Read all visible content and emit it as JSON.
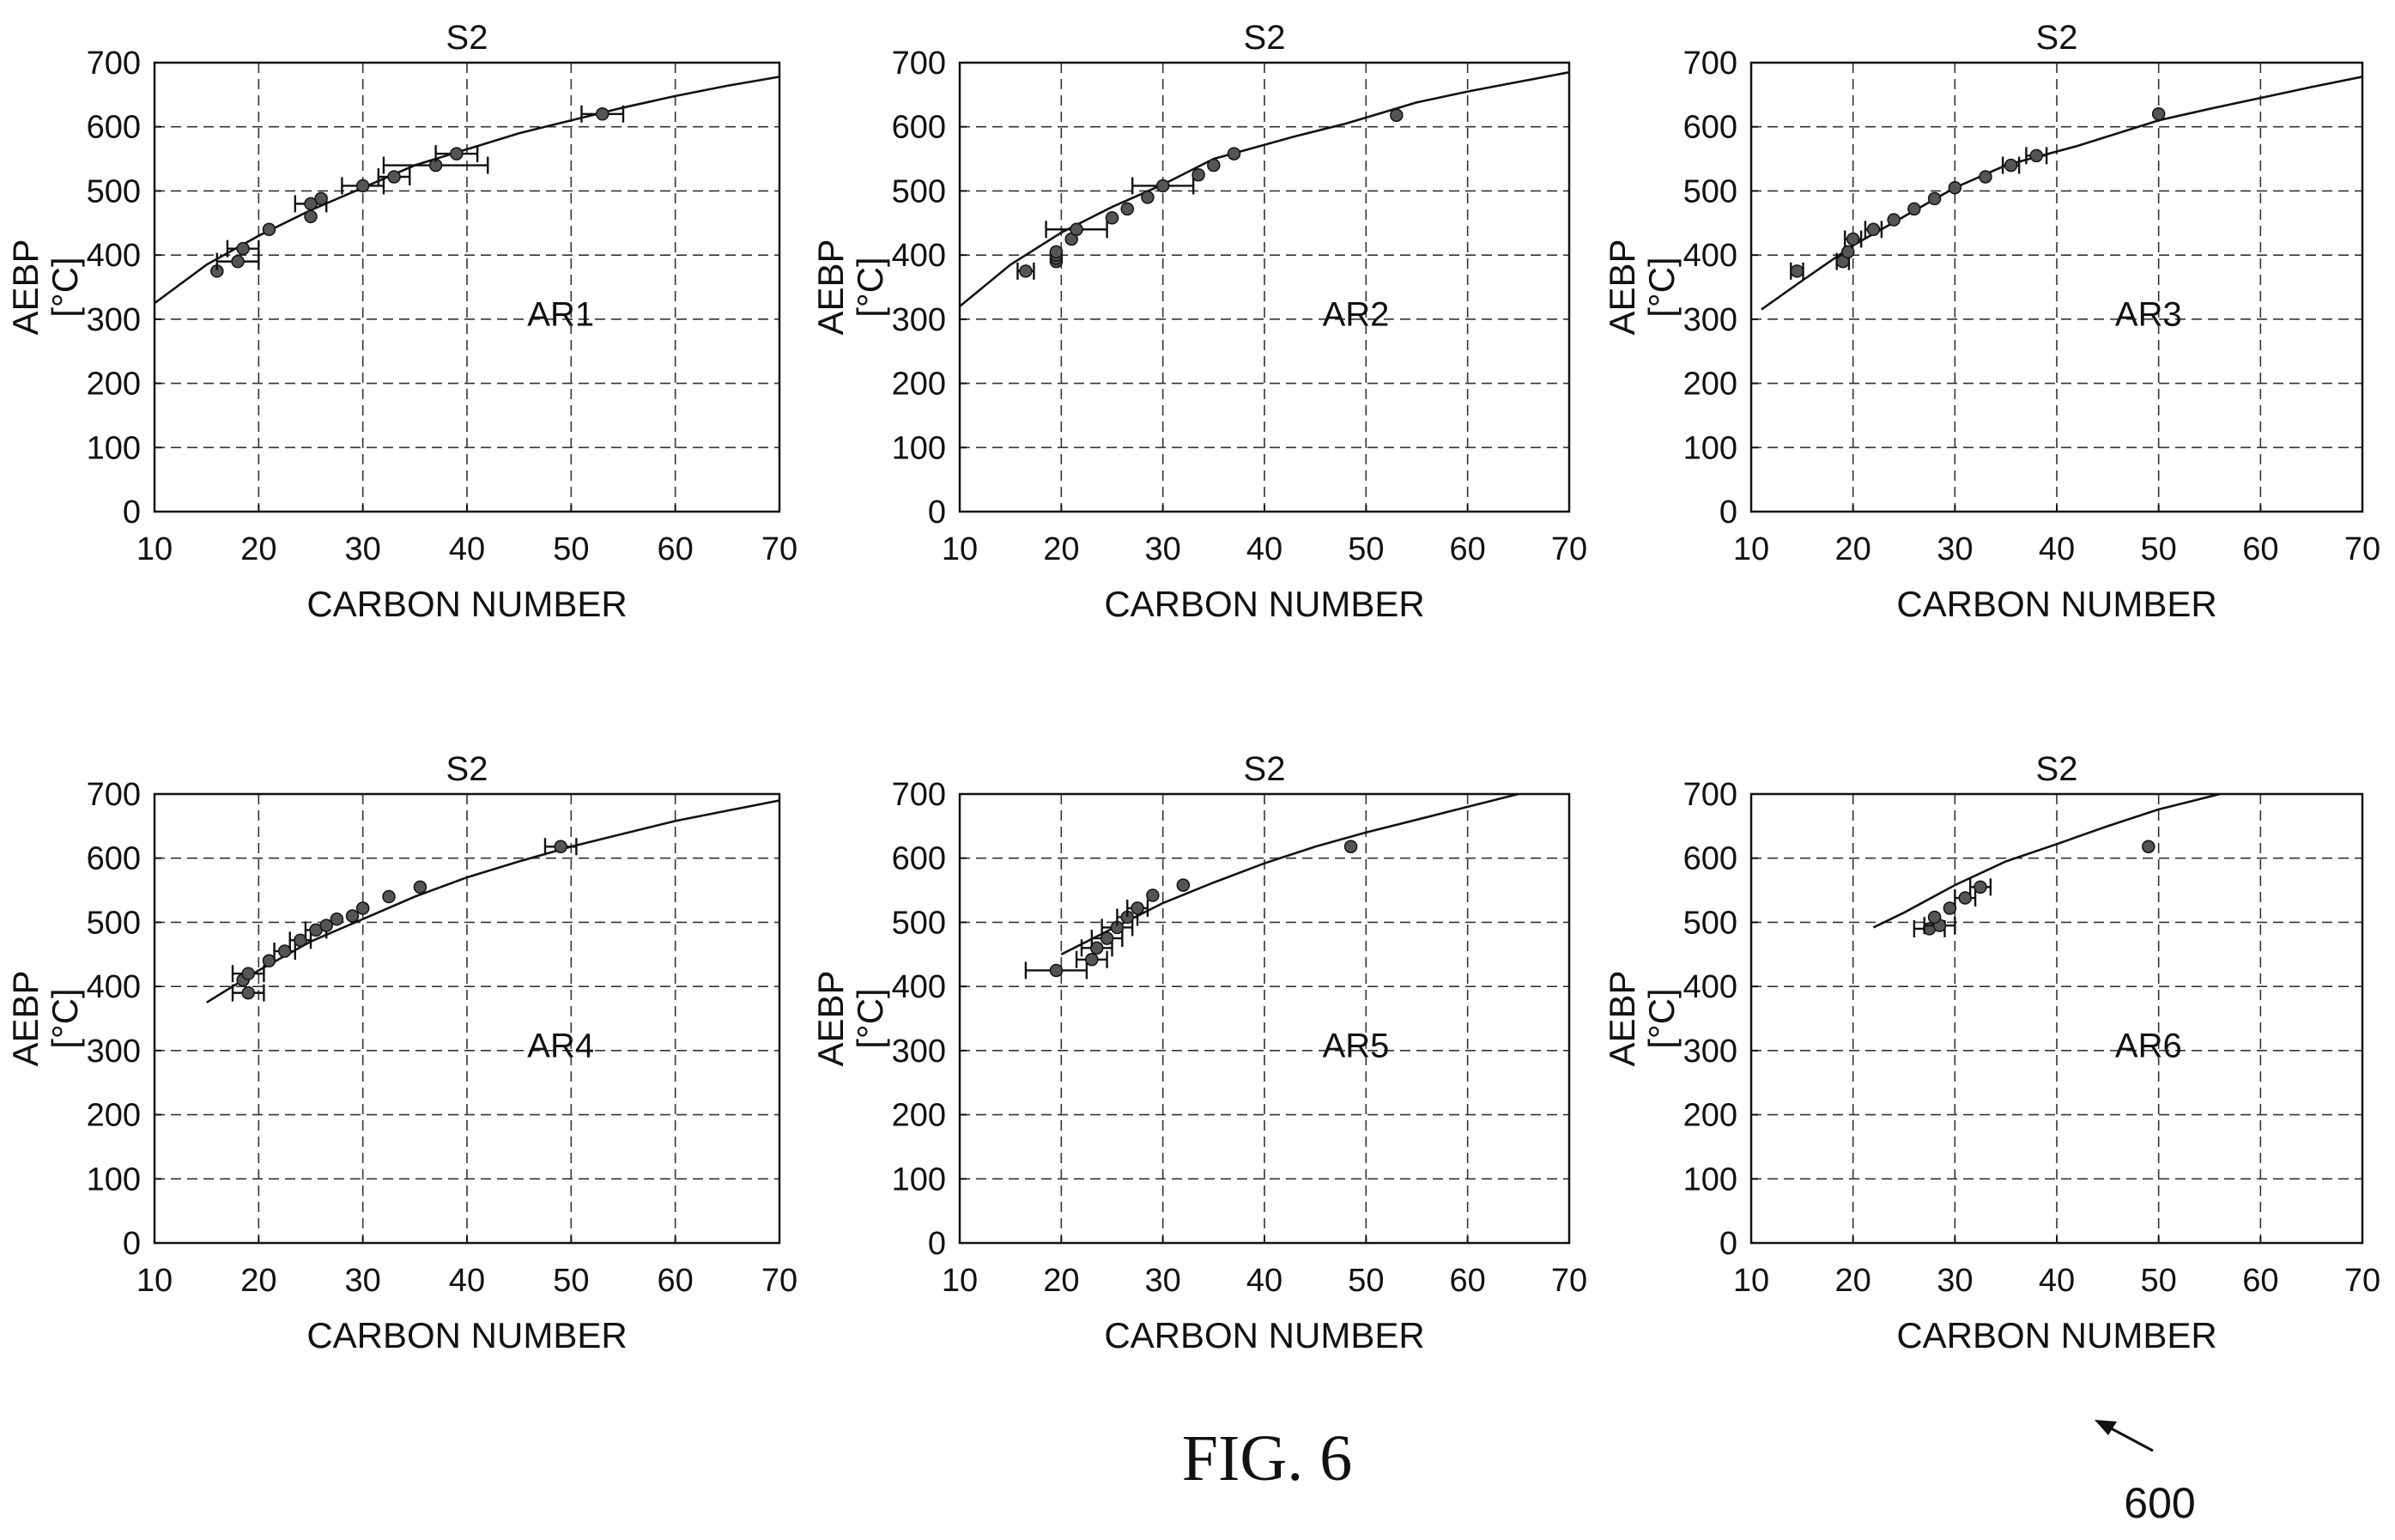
{
  "figure": {
    "caption": "FIG. 6",
    "reference_numeral": "600"
  },
  "chart_data": [
    {
      "type": "scatter",
      "title": "S2",
      "annotation": "AR1",
      "xlabel": "CARBON NUMBER",
      "ylabel": "AEBP [°C]",
      "xlim": [
        10,
        70
      ],
      "ylim": [
        0,
        700
      ],
      "xticks": [
        10,
        20,
        30,
        40,
        50,
        60,
        70
      ],
      "yticks": [
        0,
        100,
        200,
        300,
        400,
        500,
        600,
        700
      ],
      "grid": true,
      "curve": [
        [
          10,
          325
        ],
        [
          15,
          385
        ],
        [
          20,
          430
        ],
        [
          25,
          470
        ],
        [
          30,
          505
        ],
        [
          35,
          540
        ],
        [
          40,
          565
        ],
        [
          45,
          590
        ],
        [
          50,
          610
        ],
        [
          55,
          630
        ],
        [
          60,
          648
        ],
        [
          65,
          664
        ],
        [
          70,
          678
        ]
      ],
      "points": [
        {
          "x": 16,
          "y": 375
        },
        {
          "x": 18,
          "y": 390,
          "xerr": 2
        },
        {
          "x": 18.5,
          "y": 410,
          "xerr": 1.5
        },
        {
          "x": 21,
          "y": 440
        },
        {
          "x": 25,
          "y": 460
        },
        {
          "x": 25,
          "y": 480,
          "xerr": 1.5
        },
        {
          "x": 26,
          "y": 488
        },
        {
          "x": 30,
          "y": 508,
          "xerr": 2
        },
        {
          "x": 33,
          "y": 522,
          "xerr": 1.5
        },
        {
          "x": 37,
          "y": 540,
          "xerr": 5
        },
        {
          "x": 39,
          "y": 558,
          "xerr": 2
        },
        {
          "x": 53,
          "y": 620,
          "xerr": 2
        }
      ]
    },
    {
      "type": "scatter",
      "title": "S2",
      "annotation": "AR2",
      "xlabel": "CARBON NUMBER",
      "ylabel": "AEBP [°C]",
      "xlim": [
        10,
        70
      ],
      "ylim": [
        0,
        700
      ],
      "xticks": [
        10,
        20,
        30,
        40,
        50,
        60,
        70
      ],
      "yticks": [
        0,
        100,
        200,
        300,
        400,
        500,
        600,
        700
      ],
      "grid": true,
      "curve": [
        [
          10,
          320
        ],
        [
          15,
          385
        ],
        [
          20,
          435
        ],
        [
          25,
          475
        ],
        [
          30,
          510
        ],
        [
          35,
          550
        ],
        [
          43,
          585
        ],
        [
          48,
          605
        ],
        [
          55,
          638
        ],
        [
          60,
          655
        ],
        [
          65,
          670
        ],
        [
          70,
          685
        ]
      ],
      "points": [
        {
          "x": 16.5,
          "y": 375,
          "xerr": 0.8
        },
        {
          "x": 19.5,
          "y": 390
        },
        {
          "x": 19.5,
          "y": 395
        },
        {
          "x": 19.5,
          "y": 400
        },
        {
          "x": 19.5,
          "y": 405
        },
        {
          "x": 21,
          "y": 425
        },
        {
          "x": 21.5,
          "y": 440,
          "xerr": 3
        },
        {
          "x": 25,
          "y": 458
        },
        {
          "x": 26.5,
          "y": 472
        },
        {
          "x": 28.5,
          "y": 490
        },
        {
          "x": 30,
          "y": 508,
          "xerr": 3
        },
        {
          "x": 33.5,
          "y": 525
        },
        {
          "x": 35,
          "y": 540
        },
        {
          "x": 37,
          "y": 558
        },
        {
          "x": 53,
          "y": 618
        }
      ]
    },
    {
      "type": "scatter",
      "title": "S2",
      "annotation": "AR3",
      "xlabel": "CARBON NUMBER",
      "ylabel": "AEBP [°C]",
      "xlim": [
        10,
        70
      ],
      "ylim": [
        0,
        700
      ],
      "xticks": [
        10,
        20,
        30,
        40,
        50,
        60,
        70
      ],
      "yticks": [
        0,
        100,
        200,
        300,
        400,
        500,
        600,
        700
      ],
      "grid": true,
      "curve": [
        [
          11,
          315
        ],
        [
          15,
          360
        ],
        [
          20,
          415
        ],
        [
          25,
          460
        ],
        [
          30,
          505
        ],
        [
          35,
          540
        ],
        [
          42,
          570
        ],
        [
          50,
          610
        ],
        [
          55,
          628
        ],
        [
          60,
          645
        ],
        [
          65,
          662
        ],
        [
          70,
          678
        ]
      ],
      "points": [
        {
          "x": 14.5,
          "y": 375,
          "xerr": 0.6
        },
        {
          "x": 19,
          "y": 390,
          "xerr": 0.6
        },
        {
          "x": 19.5,
          "y": 405
        },
        {
          "x": 20,
          "y": 425,
          "xerr": 0.8
        },
        {
          "x": 22,
          "y": 440,
          "xerr": 0.8
        },
        {
          "x": 24,
          "y": 455
        },
        {
          "x": 26,
          "y": 472
        },
        {
          "x": 28,
          "y": 488
        },
        {
          "x": 30,
          "y": 505
        },
        {
          "x": 33,
          "y": 522
        },
        {
          "x": 35.5,
          "y": 540,
          "xerr": 0.8
        },
        {
          "x": 38,
          "y": 555,
          "xerr": 1
        },
        {
          "x": 50,
          "y": 620
        }
      ]
    },
    {
      "type": "scatter",
      "title": "S2",
      "annotation": "AR4",
      "xlabel": "CARBON NUMBER",
      "ylabel": "AEBP [°C]",
      "xlim": [
        10,
        70
      ],
      "ylim": [
        0,
        700
      ],
      "xticks": [
        10,
        20,
        30,
        40,
        50,
        60,
        70
      ],
      "yticks": [
        0,
        100,
        200,
        300,
        400,
        500,
        600,
        700
      ],
      "grid": true,
      "curve": [
        [
          15,
          375
        ],
        [
          20,
          425
        ],
        [
          25,
          470
        ],
        [
          30,
          505
        ],
        [
          35,
          540
        ],
        [
          40,
          570
        ],
        [
          45,
          595
        ],
        [
          50,
          618
        ],
        [
          55,
          638
        ],
        [
          60,
          658
        ],
        [
          65,
          674
        ],
        [
          70,
          690
        ]
      ],
      "points": [
        {
          "x": 19,
          "y": 390,
          "xerr": 1.5
        },
        {
          "x": 18.5,
          "y": 410
        },
        {
          "x": 19,
          "y": 420,
          "xerr": 1.5
        },
        {
          "x": 21,
          "y": 440
        },
        {
          "x": 22.5,
          "y": 455,
          "xerr": 1
        },
        {
          "x": 24,
          "y": 472,
          "xerr": 1
        },
        {
          "x": 25.5,
          "y": 488,
          "xerr": 1
        },
        {
          "x": 26.5,
          "y": 495
        },
        {
          "x": 27.5,
          "y": 505
        },
        {
          "x": 29,
          "y": 510
        },
        {
          "x": 30,
          "y": 522
        },
        {
          "x": 32.5,
          "y": 540
        },
        {
          "x": 35.5,
          "y": 555
        },
        {
          "x": 49,
          "y": 618,
          "xerr": 1.5
        }
      ]
    },
    {
      "type": "scatter",
      "title": "S2",
      "annotation": "AR5",
      "xlabel": "CARBON NUMBER",
      "ylabel": "AEBP [°C]",
      "xlim": [
        10,
        70
      ],
      "ylim": [
        0,
        700
      ],
      "xticks": [
        10,
        20,
        30,
        40,
        50,
        60,
        70
      ],
      "yticks": [
        0,
        100,
        200,
        300,
        400,
        500,
        600,
        700
      ],
      "grid": true,
      "curve": [
        [
          20,
          450
        ],
        [
          25,
          490
        ],
        [
          30,
          530
        ],
        [
          35,
          562
        ],
        [
          40,
          592
        ],
        [
          45,
          618
        ],
        [
          50,
          640
        ],
        [
          55,
          660
        ],
        [
          60,
          680
        ],
        [
          65,
          700
        ]
      ],
      "points": [
        {
          "x": 19.5,
          "y": 425,
          "xerr": 3
        },
        {
          "x": 23,
          "y": 442,
          "xerr": 1.5
        },
        {
          "x": 23.5,
          "y": 460,
          "xerr": 1.5
        },
        {
          "x": 24.5,
          "y": 475,
          "xerr": 1.5
        },
        {
          "x": 25.5,
          "y": 492,
          "xerr": 1.5
        },
        {
          "x": 26.5,
          "y": 508,
          "xerr": 1
        },
        {
          "x": 27.5,
          "y": 522,
          "xerr": 1
        },
        {
          "x": 29,
          "y": 542
        },
        {
          "x": 32,
          "y": 558
        },
        {
          "x": 48.5,
          "y": 618
        }
      ]
    },
    {
      "type": "scatter",
      "title": "S2",
      "annotation": "AR6",
      "xlabel": "CARBON NUMBER",
      "ylabel": "AEBP [°C]",
      "xlim": [
        10,
        70
      ],
      "ylim": [
        0,
        700
      ],
      "xticks": [
        10,
        20,
        30,
        40,
        50,
        60,
        70
      ],
      "yticks": [
        0,
        100,
        200,
        300,
        400,
        500,
        600,
        700
      ],
      "grid": true,
      "curve": [
        [
          22,
          492
        ],
        [
          25,
          515
        ],
        [
          30,
          558
        ],
        [
          35,
          595
        ],
        [
          40,
          622
        ],
        [
          45,
          650
        ],
        [
          50,
          676
        ],
        [
          56,
          700
        ]
      ],
      "points": [
        {
          "x": 27.5,
          "y": 490,
          "xerr": 1.5
        },
        {
          "x": 28.5,
          "y": 495,
          "xerr": 1.5
        },
        {
          "x": 28,
          "y": 508
        },
        {
          "x": 29.5,
          "y": 522
        },
        {
          "x": 31,
          "y": 538,
          "xerr": 1
        },
        {
          "x": 32.5,
          "y": 555,
          "xerr": 1
        },
        {
          "x": 49,
          "y": 618
        }
      ]
    }
  ]
}
